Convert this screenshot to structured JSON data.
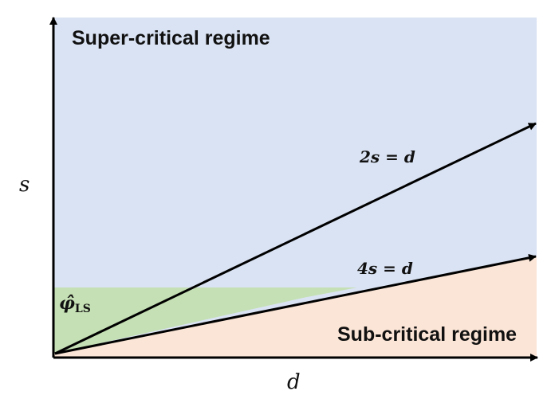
{
  "regions": {
    "super_critical": {
      "label": "Super-critical regime",
      "color": "#dae3f3"
    },
    "sub_critical": {
      "label": "Sub-critical regime",
      "color": "#fbe5d6"
    },
    "estimator": {
      "symbol": "φ̂",
      "subscript": "LS",
      "color": "#c5e0b4"
    }
  },
  "lines": {
    "upper": {
      "label": "2s = d"
    },
    "lower": {
      "label": "4s = d"
    }
  },
  "axes": {
    "x_label": "d",
    "y_label": "s",
    "color": "#000000"
  }
}
